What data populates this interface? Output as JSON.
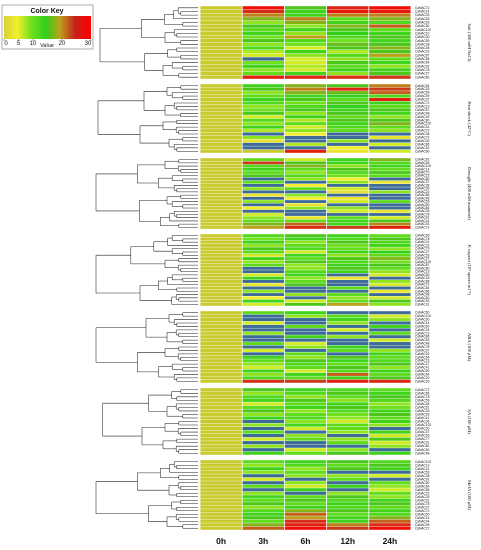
{
  "chart_data": {
    "type": "heatmap",
    "color_key": {
      "title": "Color Key",
      "xlabel": "Value",
      "ticks": [
        "0",
        "5",
        "10",
        "20",
        "30"
      ],
      "range": [
        0,
        30
      ],
      "colors": [
        "#d7d13a",
        "#f2ef2a",
        "#6ee01d",
        "#2fcf1a",
        "#b9a21a",
        "#c8201b",
        "#ff0000"
      ]
    },
    "columns": [
      "0h",
      "3h",
      "6h",
      "12h",
      "24h"
    ],
    "colors": {
      "low": "#3b6b96",
      "mid": "#c9ca2e",
      "high": "#ff1a1a"
    },
    "panels": [
      {
        "label": "Salt (300 mM NaCl)",
        "rows": [
          "CaNAC72",
          "CaNAC14",
          "CaNAC33",
          "CaNAC53",
          "CaNAC26",
          "CaNAC50",
          "CaNAC102",
          "CaNAC10",
          "CaNAC30",
          "CaNAC59",
          "CaNAC38",
          "CaNAC48",
          "CaNAC02",
          "CaNAC87",
          "CaNAC86",
          "CaNAC64",
          "CaNAC92",
          "CaNAC78",
          "CaNAC27",
          "CaNAC80"
        ],
        "values": [
          [
            1,
            28,
            12,
            25,
            28
          ],
          [
            1,
            24,
            10,
            27,
            27
          ],
          [
            1,
            18,
            10,
            18,
            18
          ],
          [
            1,
            14,
            18,
            8,
            14
          ],
          [
            1,
            6,
            14,
            10,
            9
          ],
          [
            1,
            12,
            6,
            14,
            20
          ],
          [
            1,
            8,
            10,
            12,
            8
          ],
          [
            1,
            10,
            6,
            11,
            10
          ],
          [
            1,
            7,
            16,
            9,
            12
          ],
          [
            1,
            12,
            9,
            7,
            10
          ],
          [
            1,
            6,
            7,
            13,
            12
          ],
          [
            1,
            9,
            4,
            12,
            14
          ],
          [
            1,
            5,
            10,
            5,
            12
          ],
          [
            1,
            4,
            6,
            9,
            16
          ],
          [
            1,
            0,
            4,
            6,
            8
          ],
          [
            1,
            7,
            4,
            12,
            10
          ],
          [
            1,
            10,
            5,
            8,
            6
          ],
          [
            1,
            6,
            4,
            10,
            10
          ],
          [
            1,
            8,
            10,
            6,
            12
          ],
          [
            1,
            26,
            25,
            24,
            23
          ]
        ]
      },
      {
        "label": "Heat shock (42°C)",
        "rows": [
          "CaNAC54",
          "CaNAC33",
          "CaNAC59",
          "CaNAC59",
          "CaNAC37",
          "CaNAC72",
          "CaNAC13",
          "CaNAC87",
          "CaNAC48",
          "CaNAC49",
          "CaNAC80",
          "CaNAC102",
          "CaNAC31",
          "CaNAC70",
          "CaNAC38",
          "CaNAC73",
          "CaNAC30",
          "CaNAC86",
          "CaNAC92",
          "CaNAC60"
        ],
        "values": [
          [
            1,
            10,
            14,
            12,
            18
          ],
          [
            1,
            12,
            18,
            25,
            22
          ],
          [
            1,
            6,
            14,
            13,
            20
          ],
          [
            1,
            8,
            10,
            11,
            9
          ],
          [
            1,
            10,
            12,
            8,
            26
          ],
          [
            1,
            9,
            7,
            12,
            10
          ],
          [
            1,
            6,
            9,
            11,
            8
          ],
          [
            1,
            7,
            12,
            10,
            12
          ],
          [
            1,
            12,
            6,
            12,
            10
          ],
          [
            1,
            4,
            10,
            8,
            6
          ],
          [
            1,
            9,
            5,
            12,
            12
          ],
          [
            1,
            6,
            8,
            10,
            14
          ],
          [
            1,
            10,
            4,
            9,
            8
          ],
          [
            1,
            5,
            6,
            8,
            6
          ],
          [
            1,
            0,
            3,
            0,
            0
          ],
          [
            1,
            6,
            0,
            0,
            2
          ],
          [
            1,
            2,
            0,
            6,
            0
          ],
          [
            1,
            0,
            5,
            0,
            4
          ],
          [
            1,
            0,
            0,
            3,
            0
          ],
          [
            1,
            1,
            26,
            2,
            4
          ]
        ]
      },
      {
        "label": "Drought (400 mM mannitol)",
        "rows": [
          "CaNAC92",
          "CaNAC59",
          "CaNAC102",
          "CaNAC14",
          "CaNAC70",
          "CaNAC23",
          "CaNAC80",
          "CaNAC37",
          "CaNAC38",
          "CaNAC30",
          "CaNAC22",
          "CaNAC86",
          "CaNAC48",
          "CaNAC53",
          "CaNAC50",
          "CaNAC64",
          "CaNAC36",
          "CaNAC78",
          "CaNAC41",
          "CaNAC31",
          "CaNAC53",
          "CaNAC72"
        ],
        "values": [
          [
            1,
            8,
            4,
            10,
            14
          ],
          [
            1,
            22,
            12,
            10,
            9
          ],
          [
            1,
            9,
            14,
            6,
            10
          ],
          [
            1,
            10,
            8,
            12,
            8
          ],
          [
            1,
            8,
            6,
            9,
            12
          ],
          [
            1,
            12,
            9,
            7,
            8
          ],
          [
            1,
            0,
            6,
            3,
            0
          ],
          [
            1,
            8,
            0,
            6,
            2
          ],
          [
            1,
            0,
            3,
            0,
            0
          ],
          [
            1,
            6,
            8,
            4,
            0
          ],
          [
            1,
            0,
            0,
            2,
            6
          ],
          [
            1,
            2,
            6,
            0,
            0
          ],
          [
            1,
            0,
            3,
            2,
            0
          ],
          [
            1,
            6,
            0,
            4,
            8
          ],
          [
            1,
            0,
            2,
            0,
            0
          ],
          [
            1,
            3,
            6,
            6,
            0
          ],
          [
            1,
            0,
            0,
            4,
            2
          ],
          [
            1,
            4,
            0,
            0,
            0
          ],
          [
            1,
            6,
            2,
            8,
            4
          ],
          [
            1,
            8,
            8,
            10,
            12
          ],
          [
            1,
            14,
            20,
            10,
            18
          ],
          [
            1,
            16,
            24,
            22,
            26
          ]
        ]
      },
      {
        "label": "P. capsici (10⁵ spores ml⁻¹)",
        "rows": [
          "CaNAC59",
          "CaNAC78",
          "CaNAC41",
          "CaNAC22",
          "CaNAC73",
          "CaNAC27",
          "CaNAC53",
          "CaNAC37",
          "CaNAC102",
          "CaNAC87",
          "CaNAC80",
          "CaNAC13",
          "CaNAC90",
          "CaNAC33",
          "CaNAC88",
          "CaNAC72",
          "CaNAC54",
          "CaNAC86",
          "CaNAC48",
          "CaNAC50",
          "CaNAC92",
          "CaNAC31"
        ],
        "values": [
          [
            1,
            9,
            12,
            10,
            8
          ],
          [
            1,
            7,
            10,
            9,
            12
          ],
          [
            1,
            10,
            6,
            12,
            9
          ],
          [
            1,
            6,
            8,
            7,
            10
          ],
          [
            1,
            12,
            9,
            8,
            6
          ],
          [
            1,
            8,
            4,
            10,
            11
          ],
          [
            1,
            4,
            10,
            6,
            8
          ],
          [
            1,
            10,
            8,
            12,
            14
          ],
          [
            1,
            6,
            12,
            9,
            7
          ],
          [
            1,
            8,
            6,
            10,
            12
          ],
          [
            1,
            0,
            6,
            12,
            8
          ],
          [
            1,
            0,
            9,
            10,
            6
          ],
          [
            1,
            4,
            10,
            0,
            4
          ],
          [
            1,
            10,
            6,
            2,
            0
          ],
          [
            1,
            0,
            8,
            0,
            6
          ],
          [
            1,
            2,
            12,
            0,
            4
          ],
          [
            1,
            0,
            0,
            8,
            0
          ],
          [
            1,
            6,
            0,
            0,
            2
          ],
          [
            1,
            0,
            6,
            8,
            0
          ],
          [
            1,
            3,
            0,
            6,
            4
          ],
          [
            1,
            10,
            4,
            8,
            12
          ],
          [
            1,
            4,
            12,
            16,
            6
          ]
        ]
      },
      {
        "label": "ABA (100 μM)",
        "rows": [
          "CaNAC60",
          "CaNAC102",
          "CaNAC30",
          "CaNAC14",
          "CaNAC60",
          "CaNAC24",
          "CaNAC73",
          "CaNAC86",
          "CaNAC53",
          "CaNAC48",
          "CaNAC78",
          "CaNAC37",
          "CaNAC92",
          "CaNAC54",
          "CaNAC13",
          "CaNAC27",
          "CaNAC41",
          "CaNAC50",
          "CaNAC64",
          "CaNAC20",
          "CaNAC33"
        ],
        "values": [
          [
            1,
            8,
            10,
            0,
            0
          ],
          [
            1,
            0,
            6,
            8,
            4
          ],
          [
            1,
            0,
            0,
            10,
            6
          ],
          [
            1,
            4,
            0,
            6,
            0
          ],
          [
            1,
            0,
            8,
            0,
            10
          ],
          [
            1,
            0,
            0,
            4,
            0
          ],
          [
            1,
            6,
            0,
            0,
            8
          ],
          [
            1,
            0,
            10,
            6,
            0
          ],
          [
            1,
            0,
            0,
            0,
            4
          ],
          [
            1,
            8,
            4,
            0,
            0
          ],
          [
            1,
            0,
            6,
            10,
            0
          ],
          [
            1,
            4,
            0,
            8,
            6
          ],
          [
            1,
            0,
            8,
            0,
            10
          ],
          [
            1,
            10,
            6,
            12,
            8
          ],
          [
            1,
            8,
            12,
            10,
            9
          ],
          [
            1,
            6,
            9,
            8,
            12
          ],
          [
            1,
            4,
            8,
            12,
            6
          ],
          [
            1,
            10,
            4,
            9,
            10
          ],
          [
            1,
            6,
            10,
            20,
            8
          ],
          [
            1,
            9,
            8,
            10,
            12
          ],
          [
            1,
            24,
            22,
            26,
            25
          ]
        ]
      },
      {
        "label": "SA (100 μM)",
        "rows": [
          "CaNAC72",
          "CaNAC86",
          "CaNAC78",
          "CaNAC59",
          "CaNAC48",
          "CaNAC61",
          "CaNAC33",
          "CaNAC53",
          "CaNAC41",
          "CaNAC36",
          "CaNAC102",
          "CaNAC30",
          "CaNAC37",
          "CaNAC53",
          "CaNAC77",
          "CaNAC31",
          "CaNAC80",
          "CaNAC50",
          "CaNAC48"
        ],
        "values": [
          [
            1,
            12,
            10,
            9,
            8
          ],
          [
            1,
            6,
            9,
            12,
            10
          ],
          [
            1,
            9,
            6,
            8,
            12
          ],
          [
            1,
            10,
            12,
            6,
            9
          ],
          [
            1,
            4,
            8,
            10,
            6
          ],
          [
            1,
            8,
            10,
            12,
            7
          ],
          [
            1,
            12,
            6,
            9,
            10
          ],
          [
            1,
            6,
            8,
            7,
            12
          ],
          [
            1,
            10,
            9,
            6,
            8
          ],
          [
            1,
            0,
            6,
            4,
            10
          ],
          [
            1,
            6,
            10,
            8,
            6
          ],
          [
            1,
            0,
            4,
            8,
            0
          ],
          [
            1,
            8,
            0,
            6,
            10
          ],
          [
            1,
            0,
            6,
            0,
            4
          ],
          [
            1,
            4,
            8,
            6,
            12
          ],
          [
            1,
            0,
            0,
            8,
            4
          ],
          [
            1,
            6,
            0,
            0,
            6
          ],
          [
            1,
            0,
            4,
            6,
            0
          ],
          [
            1,
            10,
            8,
            12,
            10
          ]
        ]
      },
      {
        "label": "MeJA (100 μM)",
        "rows": [
          "CaNAC102",
          "CaNAC13",
          "CaNAC41",
          "CaNAC53",
          "CaNAC38",
          "CaNAC92",
          "CaNAC80",
          "CaNAC64",
          "CaNAC86",
          "CaNAC22",
          "CaNAC33",
          "CaNAC31",
          "CaNAC78",
          "CaNAC27",
          "CaNAC72",
          "CaNAC50",
          "CaNAC14",
          "CaNAC44",
          "CaNAC59",
          "CaNAC72"
        ],
        "values": [
          [
            1,
            8,
            10,
            12,
            9
          ],
          [
            1,
            6,
            9,
            8,
            12
          ],
          [
            1,
            10,
            6,
            12,
            10
          ],
          [
            1,
            6,
            8,
            0,
            0
          ],
          [
            1,
            0,
            6,
            6,
            4
          ],
          [
            1,
            4,
            0,
            8,
            0
          ],
          [
            1,
            0,
            6,
            0,
            8
          ],
          [
            1,
            8,
            4,
            10,
            6
          ],
          [
            1,
            0,
            10,
            0,
            4
          ],
          [
            1,
            6,
            0,
            6,
            8
          ],
          [
            1,
            10,
            8,
            12,
            6
          ],
          [
            1,
            8,
            12,
            9,
            10
          ],
          [
            1,
            12,
            8,
            10,
            12
          ],
          [
            1,
            6,
            10,
            9,
            8
          ],
          [
            1,
            9,
            14,
            12,
            10
          ],
          [
            1,
            10,
            20,
            8,
            9
          ],
          [
            1,
            12,
            16,
            10,
            14
          ],
          [
            1,
            8,
            24,
            10,
            20
          ],
          [
            1,
            14,
            26,
            18,
            24
          ],
          [
            1,
            20,
            28,
            22,
            28
          ]
        ]
      }
    ]
  }
}
